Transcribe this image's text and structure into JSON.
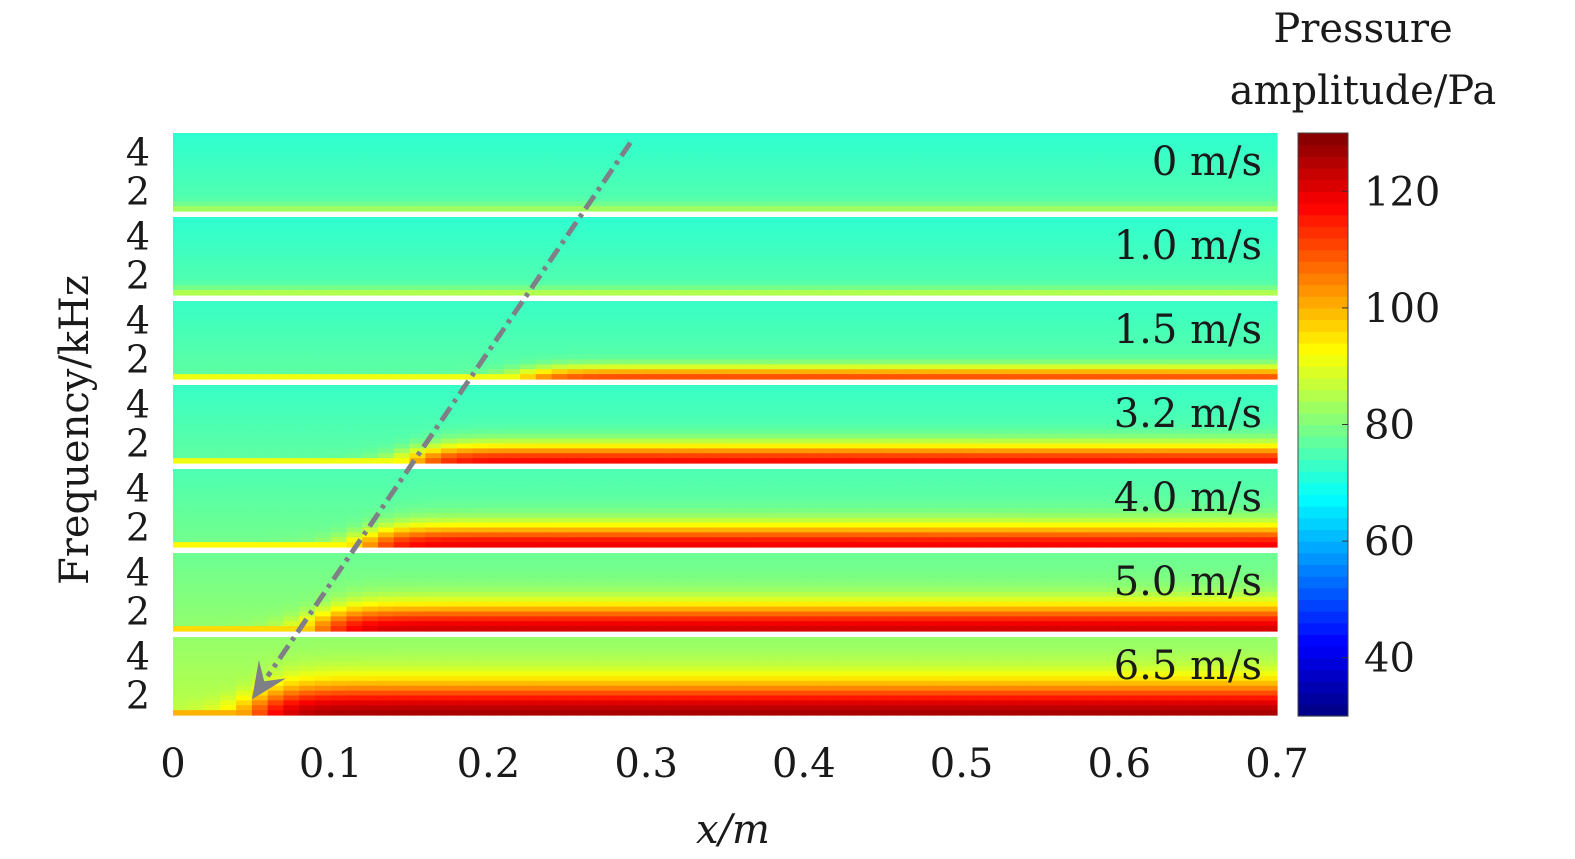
{
  "chart_data": {
    "type": "heatmap",
    "title": "",
    "xlabel": "x/m",
    "ylabel": "Frequency/kHz",
    "xlim": [
      0,
      0.7
    ],
    "x_ticks": [
      0,
      0.1,
      0.2,
      0.3,
      0.4,
      0.5,
      0.6,
      0.7
    ],
    "x_tick_labels": [
      "0",
      "0.1",
      "0.2",
      "0.3",
      "0.4",
      "0.5",
      "0.6",
      "0.7"
    ],
    "panel_ylim_khz": [
      1,
      5
    ],
    "panel_y_ticks": [
      2,
      4
    ],
    "panel_y_tick_labels": [
      "2",
      "4"
    ],
    "colorbar": {
      "label_line1": "Pressure",
      "label_line2": "amplitude/Pa",
      "range": [
        30,
        130
      ],
      "ticks": [
        40,
        60,
        80,
        100,
        120
      ],
      "tick_labels": [
        "40",
        "60",
        "80",
        "100",
        "120"
      ],
      "colormap": "jet"
    },
    "panels": [
      {
        "velocity_label": "0 m/s",
        "velocity": 0,
        "onset_x": null,
        "band_peak": 84,
        "band_far": 82,
        "background": 72
      },
      {
        "velocity_label": "1.0 m/s",
        "velocity": 1.0,
        "onset_x": null,
        "band_peak": 86,
        "band_far": 85,
        "background": 72
      },
      {
        "velocity_label": "1.5 m/s",
        "velocity": 1.5,
        "onset_x": 0.22,
        "band_peak": 112,
        "band_far": 110,
        "background": 73
      },
      {
        "velocity_label": "3.2 m/s",
        "velocity": 3.2,
        "onset_x": 0.15,
        "band_peak": 118,
        "band_far": 116,
        "background": 73
      },
      {
        "velocity_label": "4.0 m/s",
        "velocity": 4.0,
        "onset_x": 0.12,
        "band_peak": 120,
        "band_far": 118,
        "background": 75
      },
      {
        "velocity_label": "5.0 m/s",
        "velocity": 5.0,
        "onset_x": 0.09,
        "band_peak": 122,
        "band_far": 122,
        "background": 78
      },
      {
        "velocity_label": "6.5 m/s",
        "velocity": 6.5,
        "onset_x": 0.05,
        "band_peak": 126,
        "band_far": 126,
        "background": 82
      }
    ],
    "annotation": {
      "type": "dashed-arrow",
      "description": "Onset point moves upstream as flow velocity increases",
      "from": {
        "x": 0.29,
        "panel": "0 m/s",
        "freq_khz": 4.5
      },
      "to": {
        "x": 0.05,
        "panel": "6.5 m/s",
        "freq_khz": 1.8
      },
      "color": "#7f7f87"
    }
  }
}
